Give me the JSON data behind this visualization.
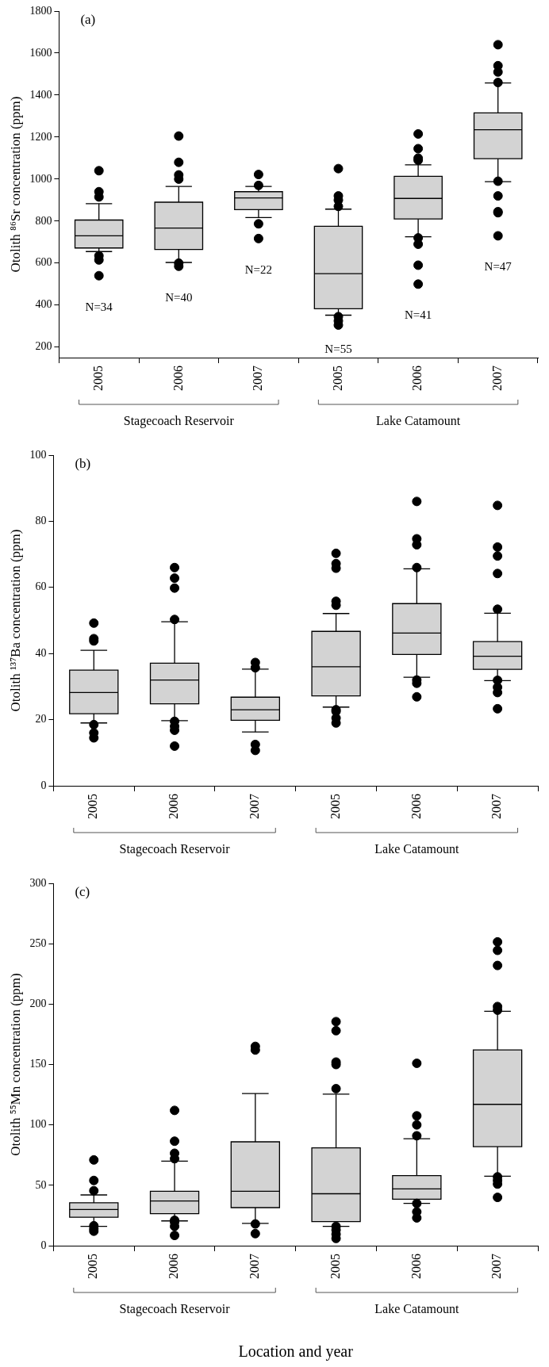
{
  "chart_data": [
    {
      "type": "box",
      "title": "(a)",
      "ylabel": "Otolith ⁸⁶Sr concentration (ppm)",
      "categories": [
        "2005",
        "2006",
        "2007",
        "2005",
        "2006",
        "2007"
      ],
      "color": "#d3d3d3",
      "marker": "circle",
      "ylim": [
        150,
        1800
      ],
      "yticks": [
        200,
        400,
        600,
        800,
        1000,
        1200,
        1400,
        1600,
        1800
      ],
      "boxes": [
        {
          "low": 655,
          "q1": 672,
          "median": 730,
          "q3": 805,
          "high": 883,
          "outliers": [
            1040,
            940,
            915,
            635,
            615,
            540
          ]
        },
        {
          "low": 603,
          "q1": 665,
          "median": 767,
          "q3": 890,
          "high": 965,
          "outliers": [
            1205,
            1080,
            1020,
            1000,
            600,
            585
          ]
        },
        {
          "low": 817,
          "q1": 855,
          "median": 910,
          "q3": 940,
          "high": 965,
          "outliers": [
            1022,
            970,
            787,
            717
          ]
        },
        {
          "low": 352,
          "q1": 383,
          "median": 550,
          "q3": 775,
          "high": 857,
          "outliers": [
            1050,
            920,
            900,
            870,
            345,
            325,
            305
          ]
        },
        {
          "low": 725,
          "q1": 810,
          "median": 908,
          "q3": 1013,
          "high": 1068,
          "outliers": [
            1215,
            1145,
            1100,
            1090,
            720,
            690,
            590,
            500
          ]
        },
        {
          "low": 988,
          "q1": 1097,
          "median": 1235,
          "q3": 1315,
          "high": 1458,
          "outliers": [
            1640,
            1540,
            1510,
            1460,
            990,
            920,
            845,
            840,
            730
          ]
        }
      ],
      "annotations": [
        "N=34",
        "N=40",
        "N=22",
        "N=55",
        "N=41",
        "N=47",
        "Stagecoach Reservoir",
        "Lake Catamount"
      ]
    },
    {
      "type": "box",
      "title": "(b)",
      "ylabel": "Otolith ¹³⁷Ba concentration (ppm)",
      "categories": [
        "2005",
        "2006",
        "2007",
        "2005",
        "2006",
        "2007"
      ],
      "color": "#d3d3d3",
      "marker": "circle",
      "ylim": [
        0,
        100
      ],
      "yticks": [
        0,
        20,
        40,
        60,
        80,
        100
      ],
      "boxes": [
        {
          "low": 19,
          "q1": 21.8,
          "median": 28.2,
          "q3": 35,
          "high": 41,
          "outliers": [
            49.2,
            44.5,
            43.8,
            18.5,
            16,
            14.5
          ]
        },
        {
          "low": 19.7,
          "q1": 24.8,
          "median": 32,
          "q3": 37.1,
          "high": 49.6,
          "outliers": [
            66,
            62.8,
            59.8,
            50.3,
            19.5,
            18,
            16.8,
            12
          ]
        },
        {
          "low": 16.3,
          "q1": 19.8,
          "median": 23,
          "q3": 26.8,
          "high": 35.3,
          "outliers": [
            37.3,
            35.7,
            12.5,
            10.7
          ]
        },
        {
          "low": 23.8,
          "q1": 27.2,
          "median": 36,
          "q3": 46.7,
          "high": 52.1,
          "outliers": [
            70.3,
            67.2,
            65.8,
            55.8,
            54.6,
            23,
            22.5,
            20.5,
            19
          ]
        },
        {
          "low": 32.8,
          "q1": 39.7,
          "median": 46.2,
          "q3": 55.1,
          "high": 65.6,
          "outliers": [
            86,
            74.7,
            72.9,
            66,
            32,
            31,
            26.9
          ]
        },
        {
          "low": 31.8,
          "q1": 35.2,
          "median": 39.2,
          "q3": 43.6,
          "high": 52.2,
          "outliers": [
            84.8,
            72.2,
            69.5,
            64.2,
            53.4,
            31.9,
            29.8,
            28.2,
            23.3
          ]
        }
      ],
      "annotations": [
        "Stagecoach Reservoir",
        "Lake Catamount"
      ]
    },
    {
      "type": "box",
      "title": "(c)",
      "ylabel": "Otolith ⁵⁵Mn concentration (ppm)",
      "xlabel": "Location and year",
      "categories": [
        "2005",
        "2006",
        "2007",
        "2005",
        "2006",
        "2007"
      ],
      "color": "#d3d3d3",
      "marker": "circle",
      "ylim": [
        0,
        300
      ],
      "yticks": [
        0,
        50,
        100,
        150,
        200,
        250,
        300
      ],
      "boxes": [
        {
          "low": 16,
          "q1": 23.5,
          "median": 30,
          "q3": 35.5,
          "high": 42,
          "outliers": [
            71,
            54,
            45.5,
            16.5,
            14,
            12
          ]
        },
        {
          "low": 20.5,
          "q1": 26.5,
          "median": 37,
          "q3": 45,
          "high": 70,
          "outliers": [
            112,
            86.5,
            76.5,
            72,
            21,
            19.5,
            16,
            8.5
          ]
        },
        {
          "low": 18.5,
          "q1": 31.5,
          "median": 45,
          "q3": 86,
          "high": 126,
          "outliers": [
            165,
            162,
            18,
            10
          ]
        },
        {
          "low": 16,
          "q1": 20,
          "median": 43,
          "q3": 81,
          "high": 125.5,
          "outliers": [
            185.5,
            178,
            152,
            150,
            130,
            16,
            13,
            9.5,
            6
          ]
        },
        {
          "low": 35,
          "q1": 38.5,
          "median": 47,
          "q3": 58,
          "high": 88.5,
          "outliers": [
            151,
            107.5,
            100,
            91,
            35,
            28,
            23
          ]
        },
        {
          "low": 57.5,
          "q1": 82,
          "median": 117,
          "q3": 162,
          "high": 194,
          "outliers": [
            251.5,
            244.5,
            232,
            198,
            195,
            57,
            54,
            51,
            40
          ]
        }
      ],
      "annotations": [
        "Stagecoach Reservoir",
        "Lake Catamount"
      ]
    }
  ]
}
